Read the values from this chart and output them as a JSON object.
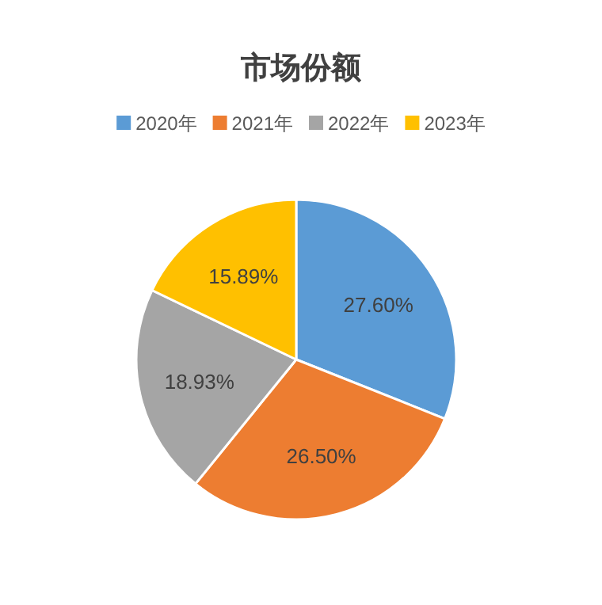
{
  "chart_data": {
    "type": "pie",
    "title": "市场份额",
    "categories": [
      "2020年",
      "2021年",
      "2022年",
      "2023年"
    ],
    "values": [
      27.6,
      26.5,
      18.93,
      15.89
    ],
    "colors": [
      "#5b9bd5",
      "#ed7d31",
      "#a5a5a5",
      "#ffc000"
    ],
    "value_labels": [
      "27.60%",
      "26.50%",
      "18.93%",
      "15.89%"
    ],
    "legend": "top"
  }
}
